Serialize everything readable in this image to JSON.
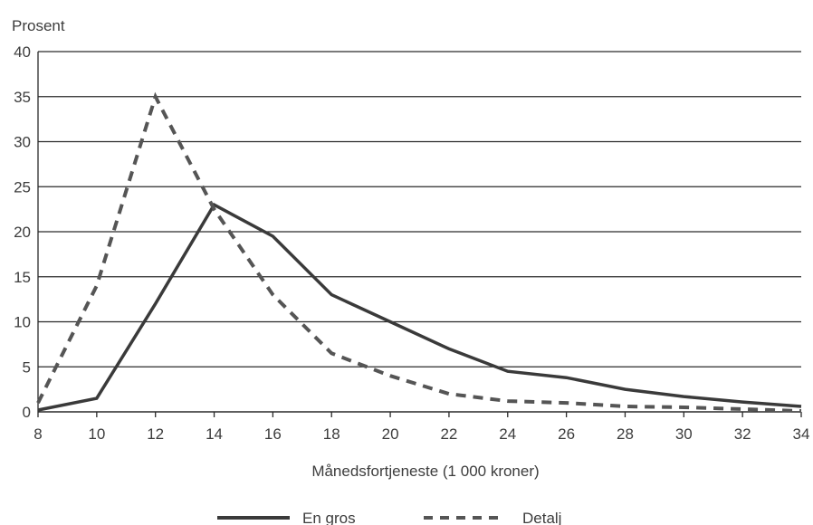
{
  "chart_data": {
    "type": "line",
    "xlabel": "Månedsfortjeneste (1 000 kroner)",
    "ylabel": "Prosent",
    "xlim": [
      8,
      34
    ],
    "ylim": [
      0,
      40
    ],
    "x_ticks": [
      8,
      10,
      12,
      14,
      16,
      18,
      20,
      22,
      24,
      26,
      28,
      30,
      32,
      34
    ],
    "y_ticks": [
      0,
      5,
      10,
      15,
      20,
      25,
      30,
      35,
      40
    ],
    "grid": "horizontal",
    "legend_position": "bottom",
    "series": [
      {
        "name": "En gros",
        "style": "solid",
        "color": "#3a3a3a",
        "x": [
          8,
          10,
          12,
          14,
          16,
          18,
          20,
          22,
          24,
          26,
          28,
          30,
          32,
          34
        ],
        "y": [
          0.2,
          1.5,
          12,
          23,
          19.5,
          13,
          10,
          7,
          4.5,
          3.8,
          2.5,
          1.7,
          1.1,
          0.6
        ]
      },
      {
        "name": "Detalj",
        "style": "dashed",
        "color": "#555555",
        "x": [
          8,
          10,
          12,
          14,
          16,
          18,
          20,
          22,
          24,
          26,
          28,
          30,
          32,
          34
        ],
        "y": [
          1,
          14,
          35,
          22.5,
          13,
          6.5,
          4,
          2,
          1.2,
          1,
          0.6,
          0.5,
          0.3,
          0.1
        ]
      }
    ]
  }
}
